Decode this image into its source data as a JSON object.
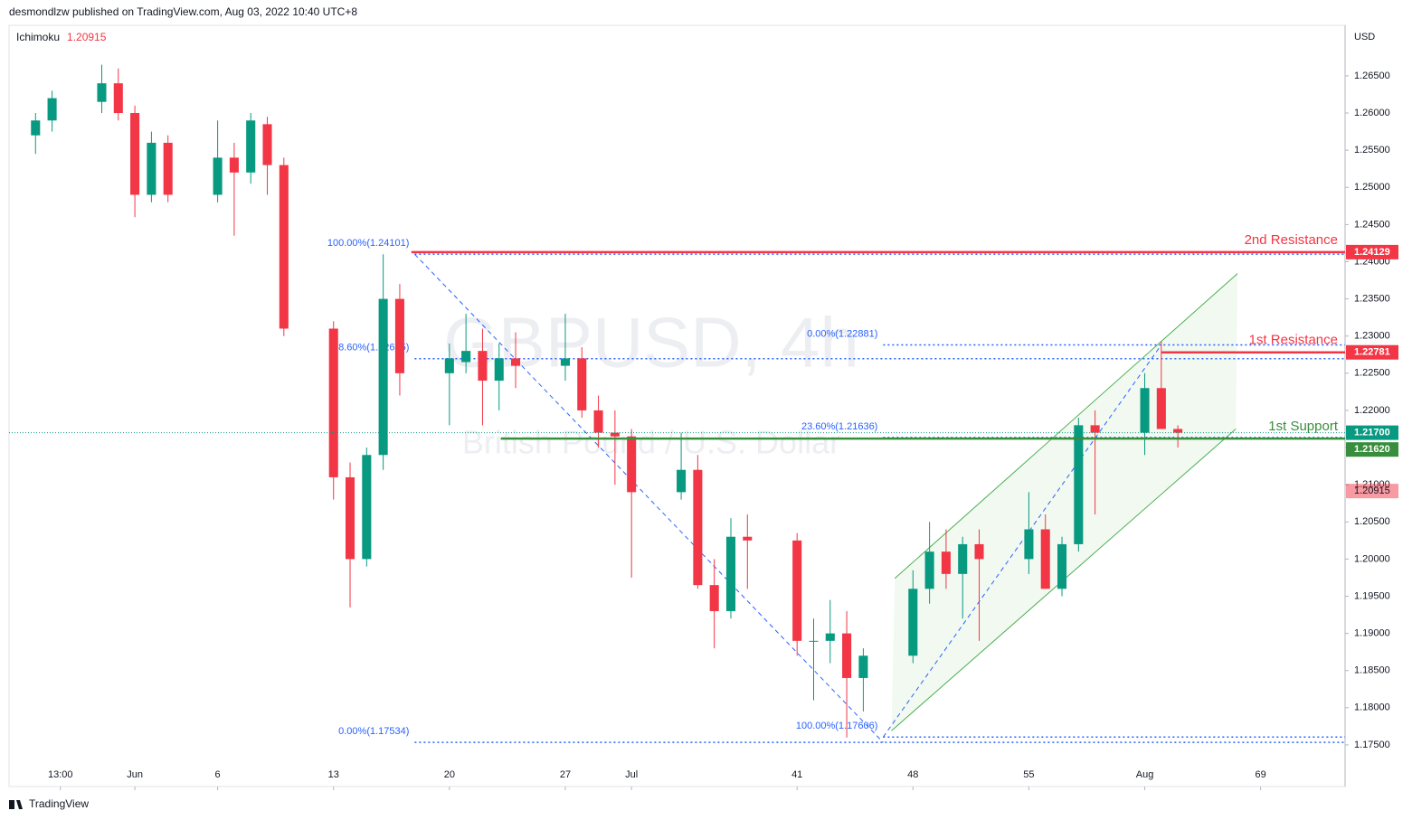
{
  "header": {
    "publisher": "desmondlzw published on TradingView.com, Aug 03, 2022 10:40 UTC+8"
  },
  "footer": {
    "brand": "TradingView"
  },
  "chart_data": {
    "type": "candlestick",
    "watermark": {
      "symbol": "GBPUSD, 4h",
      "description": "British Pound / U.S. Dollar"
    },
    "indicator": {
      "name": "Ichimoku",
      "value": 1.20915,
      "color": "#f23645"
    },
    "currency": "USD",
    "up_color": "#089981",
    "down_color": "#f23645",
    "x": [
      -5,
      -4,
      -1,
      0,
      1,
      2,
      3,
      6,
      7,
      8,
      9,
      10,
      13,
      14,
      15,
      16,
      17,
      20,
      21,
      22,
      23,
      24,
      27,
      28,
      29,
      30,
      31,
      34,
      35,
      36,
      37,
      38,
      41,
      42,
      43,
      44,
      45,
      48,
      49,
      50,
      51,
      52,
      55,
      56,
      57,
      58,
      59,
      62,
      63,
      64
    ],
    "open": [
      1.257,
      1.259,
      1.2615,
      1.264,
      1.26,
      1.249,
      1.256,
      1.249,
      1.254,
      1.252,
      1.2585,
      1.253,
      1.231,
      1.211,
      1.2,
      1.214,
      1.235,
      1.225,
      1.2265,
      1.228,
      1.224,
      1.227,
      1.226,
      1.227,
      1.22,
      1.217,
      1.2165,
      1.209,
      1.212,
      1.1965,
      1.193,
      1.203,
      1.2025,
      1.189,
      1.189,
      1.19,
      1.184,
      1.187,
      1.196,
      1.201,
      1.198,
      1.202,
      1.2,
      1.204,
      1.196,
      1.202,
      1.218,
      1.217,
      1.223,
      1.2175
    ],
    "high": [
      1.26,
      1.263,
      1.2665,
      1.266,
      1.261,
      1.2575,
      1.257,
      1.259,
      1.256,
      1.26,
      1.2595,
      1.254,
      1.232,
      1.213,
      1.215,
      1.241,
      1.237,
      1.229,
      1.233,
      1.231,
      1.229,
      1.2305,
      1.233,
      1.2285,
      1.222,
      1.22,
      1.2175,
      1.217,
      1.214,
      1.2,
      1.2055,
      1.206,
      1.2035,
      1.192,
      1.1945,
      1.193,
      1.188,
      1.1985,
      1.205,
      1.204,
      1.203,
      1.204,
      1.209,
      1.206,
      1.203,
      1.219,
      1.22,
      1.225,
      1.2293,
      1.218
    ],
    "low": [
      1.2545,
      1.2575,
      1.26,
      1.259,
      1.246,
      1.248,
      1.248,
      1.248,
      1.2435,
      1.2505,
      1.249,
      1.23,
      1.208,
      1.1935,
      1.199,
      1.212,
      1.222,
      1.218,
      1.225,
      1.218,
      1.22,
      1.223,
      1.224,
      1.219,
      1.215,
      1.21,
      1.1975,
      1.208,
      1.196,
      1.188,
      1.192,
      1.196,
      1.187,
      1.181,
      1.186,
      1.176,
      1.1795,
      1.186,
      1.194,
      1.196,
      1.192,
      1.189,
      1.198,
      1.196,
      1.195,
      1.201,
      1.206,
      1.214,
      1.218,
      1.215
    ],
    "close": [
      1.259,
      1.262,
      1.264,
      1.26,
      1.249,
      1.256,
      1.249,
      1.254,
      1.252,
      1.259,
      1.253,
      1.231,
      1.211,
      1.2,
      1.214,
      1.235,
      1.225,
      1.227,
      1.228,
      1.224,
      1.227,
      1.226,
      1.227,
      1.22,
      1.217,
      1.2165,
      1.209,
      1.212,
      1.1965,
      1.193,
      1.203,
      1.2025,
      1.189,
      1.189,
      1.19,
      1.184,
      1.187,
      1.196,
      1.201,
      1.198,
      1.202,
      1.2,
      1.204,
      1.196,
      1.202,
      1.218,
      1.217,
      1.223,
      1.2175,
      1.217
    ],
    "last_price": {
      "value": 1.217,
      "label": "1.21700",
      "color": "#089981"
    },
    "xlim": [
      -6.6,
      74.1
    ],
    "ylim": [
      1.1694,
      1.2718
    ],
    "xticks": [
      {
        "value": -3.5,
        "label": "13:00"
      },
      {
        "value": 1,
        "label": "Jun"
      },
      6,
      13,
      20,
      27,
      {
        "value": 31,
        "label": "Jul"
      },
      41,
      48,
      55,
      {
        "value": 62,
        "label": "Aug"
      },
      69
    ],
    "yticks": [
      {
        "value": 1.175,
        "label": "1.17500"
      },
      {
        "value": 1.18,
        "label": "1.18000"
      },
      {
        "value": 1.185,
        "label": "1.18500"
      },
      {
        "value": 1.19,
        "label": "1.19000"
      },
      {
        "value": 1.195,
        "label": "1.19500"
      },
      {
        "value": 1.2,
        "label": "1.20000"
      },
      {
        "value": 1.205,
        "label": "1.20500"
      },
      {
        "value": 1.21,
        "label": "1.21000"
      },
      {
        "value": 1.215,
        "label": "1.21500"
      },
      {
        "value": 1.22,
        "label": "1.22000"
      },
      {
        "value": 1.225,
        "label": "1.22500"
      },
      {
        "value": 1.23,
        "label": "1.23000"
      },
      {
        "value": 1.235,
        "label": "1.23500"
      },
      {
        "value": 1.24,
        "label": "1.24000"
      },
      {
        "value": 1.245,
        "label": "1.24500"
      },
      {
        "value": 1.25,
        "label": "1.25000"
      },
      {
        "value": 1.255,
        "label": "1.25500"
      },
      {
        "value": 1.26,
        "label": "1.26000"
      },
      {
        "value": 1.265,
        "label": "1.26500"
      }
    ],
    "grid": false,
    "levels": [
      {
        "name": "2nd Resistance",
        "value": 1.24129,
        "label": "1.24129",
        "from": 17.7,
        "color": "#f23645"
      },
      {
        "name": "1st Resistance",
        "value": 1.22781,
        "label": "1.22781",
        "from": 63,
        "color": "#f23645"
      },
      {
        "name": "1st Support",
        "value": 1.2162,
        "label": "1.21620",
        "from": 23.1,
        "color": "#388e3c"
      }
    ],
    "fibs": [
      {
        "start": [
          17.9,
          1.24101
        ],
        "end": [
          46.2,
          1.17534
        ],
        "levels": [
          {
            "value": 1.24101,
            "label": "100.00%(1.24101)"
          },
          {
            "value": 1.22695,
            "label": "78.60%(1.22695)"
          },
          {
            "value": 1.17534,
            "label": "0.00%(1.17534)"
          }
        ]
      },
      {
        "start": [
          46.2,
          1.17606
        ],
        "end": [
          63,
          1.22881
        ],
        "levels": [
          {
            "value": 1.22881,
            "label": "0.00%(1.22881)"
          },
          {
            "value": 1.21636,
            "label": "23.60%(1.21636)"
          },
          {
            "value": 1.17606,
            "label": "100.00%(1.17606)"
          }
        ]
      }
    ],
    "fib_color": "#2962ff",
    "channel": {
      "color": "#4caf50",
      "upper": [
        [
          46.9,
          1.1974
        ],
        [
          67.6,
          1.2384
        ]
      ],
      "lower": [
        [
          46.7,
          1.1769
        ],
        [
          67.5,
          1.2175
        ]
      ]
    }
  }
}
